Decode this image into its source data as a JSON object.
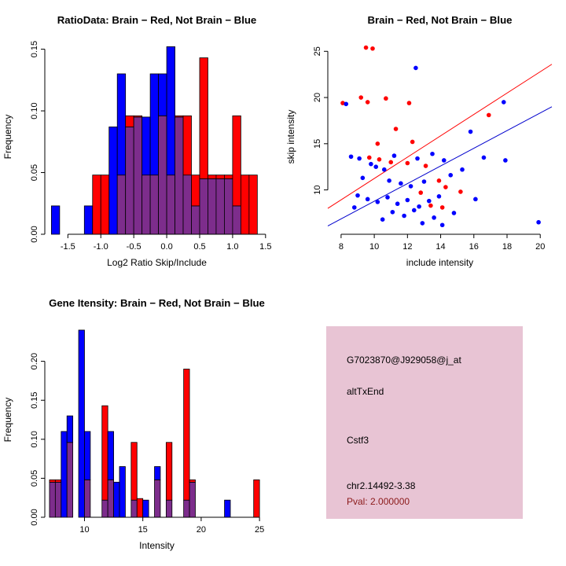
{
  "chart_data": [
    {
      "type": "bar",
      "subtype": "overlaid-histogram",
      "title": "RatioData: Brain − Red, Not Brain − Blue",
      "xlabel": "Log2 Ratio Skip/Include",
      "ylabel": "Frequency",
      "xlim": [
        -1.85,
        1.55
      ],
      "ylim": [
        0,
        0.158
      ],
      "xticks": [
        -1.5,
        -1.0,
        -0.5,
        0.0,
        0.5,
        1.0,
        1.5
      ],
      "xtick_labels": [
        "-1.5",
        "-1.0",
        "-0.5",
        "0.0",
        "0.5",
        "1.0",
        "1.5"
      ],
      "yticks": [
        0,
        0.05,
        0.1,
        0.15
      ],
      "ytick_labels": [
        "0.00",
        "0.05",
        "0.10",
        "0.15"
      ],
      "bin_width": 0.125,
      "colors": {
        "red": "#FF0000",
        "blue": "#0000FF",
        "overlap": "#7D2D8C"
      },
      "blue": [
        [
          -1.6875,
          0.023
        ],
        [
          -1.1875,
          0.023
        ],
        [
          -0.8125,
          0.087
        ],
        [
          -0.6875,
          0.13
        ],
        [
          -0.5625,
          0.087
        ],
        [
          -0.4375,
          0.095
        ],
        [
          -0.3125,
          0.095
        ],
        [
          -0.1875,
          0.13
        ],
        [
          -0.0625,
          0.13
        ],
        [
          0.0625,
          0.152
        ],
        [
          0.1875,
          0.095
        ],
        [
          0.3125,
          0.048
        ],
        [
          0.4375,
          0.023
        ],
        [
          0.5625,
          0.045
        ],
        [
          0.6875,
          0.045
        ],
        [
          0.8125,
          0.045
        ],
        [
          0.9375,
          0.045
        ],
        [
          1.0625,
          0.023
        ]
      ],
      "red": [
        [
          -1.0625,
          0.048
        ],
        [
          -0.9375,
          0.048
        ],
        [
          -0.6875,
          0.048
        ],
        [
          -0.5625,
          0.096
        ],
        [
          -0.4375,
          0.096
        ],
        [
          -0.3125,
          0.048
        ],
        [
          -0.1875,
          0.048
        ],
        [
          -0.0625,
          0.096
        ],
        [
          0.0625,
          0.048
        ],
        [
          0.1875,
          0.096
        ],
        [
          0.3125,
          0.096
        ],
        [
          0.4375,
          0.048
        ],
        [
          0.5625,
          0.143
        ],
        [
          0.6875,
          0.048
        ],
        [
          0.8125,
          0.048
        ],
        [
          0.9375,
          0.048
        ],
        [
          1.0625,
          0.096
        ],
        [
          1.1875,
          0.048
        ],
        [
          1.3125,
          0.048
        ]
      ]
    },
    {
      "type": "scatter",
      "title": "Brain − Red, Not Brain − Blue",
      "xlabel": "include intensity",
      "ylabel": "skip intensity",
      "xlim": [
        7.2,
        20.7
      ],
      "ylim": [
        5.2,
        26.3
      ],
      "xticks": [
        8,
        10,
        12,
        14,
        16,
        18,
        20
      ],
      "xtick_labels": [
        "8",
        "10",
        "12",
        "14",
        "16",
        "18",
        "20"
      ],
      "yticks": [
        10,
        15,
        20,
        25
      ],
      "ytick_labels": [
        "10",
        "15",
        "20",
        "25"
      ],
      "colors": {
        "red": "#FF0000",
        "blue": "#0000FF"
      },
      "red": [
        [
          9.5,
          25.4
        ],
        [
          9.9,
          25.3
        ],
        [
          8.1,
          19.4
        ],
        [
          9.2,
          20.0
        ],
        [
          9.6,
          19.5
        ],
        [
          10.7,
          19.9
        ],
        [
          12.1,
          19.4
        ],
        [
          11.3,
          16.6
        ],
        [
          10.2,
          15.0
        ],
        [
          12.3,
          15.2
        ],
        [
          9.7,
          13.5
        ],
        [
          10.3,
          13.3
        ],
        [
          11.0,
          13.0
        ],
        [
          12.0,
          12.9
        ],
        [
          13.1,
          12.6
        ],
        [
          13.9,
          11.0
        ],
        [
          14.3,
          10.3
        ],
        [
          12.8,
          9.7
        ],
        [
          13.4,
          8.3
        ],
        [
          14.1,
          8.1
        ],
        [
          15.2,
          9.8
        ],
        [
          16.9,
          18.1
        ]
      ],
      "blue": [
        [
          12.5,
          23.2
        ],
        [
          8.3,
          19.3
        ],
        [
          17.8,
          19.5
        ],
        [
          8.6,
          13.6
        ],
        [
          9.1,
          13.4
        ],
        [
          9.8,
          12.8
        ],
        [
          10.1,
          12.5
        ],
        [
          10.6,
          12.2
        ],
        [
          11.2,
          13.7
        ],
        [
          12.6,
          13.4
        ],
        [
          13.5,
          13.9
        ],
        [
          14.2,
          13.2
        ],
        [
          9.3,
          11.3
        ],
        [
          10.9,
          11.0
        ],
        [
          11.6,
          10.7
        ],
        [
          12.2,
          10.4
        ],
        [
          13.0,
          10.9
        ],
        [
          14.6,
          11.6
        ],
        [
          15.3,
          12.2
        ],
        [
          9.0,
          9.4
        ],
        [
          9.6,
          9.0
        ],
        [
          10.2,
          8.7
        ],
        [
          10.8,
          9.2
        ],
        [
          11.4,
          8.5
        ],
        [
          12.0,
          8.9
        ],
        [
          12.7,
          8.2
        ],
        [
          13.3,
          8.8
        ],
        [
          13.9,
          9.3
        ],
        [
          11.1,
          7.6
        ],
        [
          11.8,
          7.2
        ],
        [
          12.4,
          7.8
        ],
        [
          13.6,
          7.0
        ],
        [
          14.8,
          7.5
        ],
        [
          10.5,
          6.8
        ],
        [
          12.9,
          6.4
        ],
        [
          14.1,
          6.2
        ],
        [
          16.1,
          9.0
        ],
        [
          16.6,
          13.5
        ],
        [
          17.9,
          13.2
        ],
        [
          19.9,
          6.5
        ],
        [
          15.8,
          16.3
        ],
        [
          8.8,
          8.1
        ]
      ],
      "lines": [
        {
          "name": "brain-fit",
          "color": "#FF0000",
          "x1": 7.2,
          "y1": 8.0,
          "x2": 20.7,
          "y2": 23.6
        },
        {
          "name": "not-brain-fit",
          "color": "#0000CD",
          "x1": 7.2,
          "y1": 6.1,
          "x2": 20.7,
          "y2": 19.0
        }
      ]
    },
    {
      "type": "bar",
      "subtype": "overlaid-histogram",
      "title": "Gene Itensity: Brain − Red, Not Brain − Blue",
      "xlabel": "Intensity",
      "ylabel": "Frequency",
      "xlim": [
        6.6,
        25.8
      ],
      "ylim": [
        0,
        0.25
      ],
      "xticks": [
        10,
        15,
        20,
        25
      ],
      "xtick_labels": [
        "10",
        "15",
        "20",
        "25"
      ],
      "yticks": [
        0,
        0.05,
        0.1,
        0.15,
        0.2
      ],
      "ytick_labels": [
        "0.00",
        "0.05",
        "0.10",
        "0.15",
        "0.20"
      ],
      "bin_width": 0.5,
      "colors": {
        "red": "#FF0000",
        "blue": "#0000FF",
        "overlap": "#7D2D8C"
      },
      "blue": [
        [
          7.25,
          0.045
        ],
        [
          7.75,
          0.045
        ],
        [
          8.25,
          0.11
        ],
        [
          8.75,
          0.13
        ],
        [
          9.75,
          0.24
        ],
        [
          10.25,
          0.11
        ],
        [
          11.75,
          0.022
        ],
        [
          12.25,
          0.11
        ],
        [
          12.75,
          0.045
        ],
        [
          13.25,
          0.065
        ],
        [
          14.25,
          0.022
        ],
        [
          15.25,
          0.022
        ],
        [
          16.25,
          0.065
        ],
        [
          17.25,
          0.022
        ],
        [
          18.75,
          0.022
        ],
        [
          19.25,
          0.045
        ],
        [
          22.25,
          0.022
        ]
      ],
      "red": [
        [
          7.25,
          0.048
        ],
        [
          7.75,
          0.048
        ],
        [
          8.75,
          0.096
        ],
        [
          10.25,
          0.048
        ],
        [
          11.75,
          0.143
        ],
        [
          12.25,
          0.048
        ],
        [
          14.25,
          0.096
        ],
        [
          14.75,
          0.024
        ],
        [
          16.25,
          0.048
        ],
        [
          17.25,
          0.096
        ],
        [
          18.75,
          0.19
        ],
        [
          19.25,
          0.048
        ],
        [
          24.75,
          0.048
        ]
      ]
    },
    {
      "type": "table",
      "name": "gene-info",
      "bg": "#E8C4D4",
      "lines": [
        {
          "text": "G7023870@J929058@j_at",
          "color": "#000000"
        },
        {
          "text": "altTxEnd",
          "color": "#000000"
        },
        {
          "text": "Cstf3",
          "color": "#000000"
        },
        {
          "text": "chr2.14492-3.38",
          "color": "#000000"
        },
        {
          "text": "Pval: 2.000000",
          "color": "#8B1A1A"
        }
      ]
    }
  ]
}
